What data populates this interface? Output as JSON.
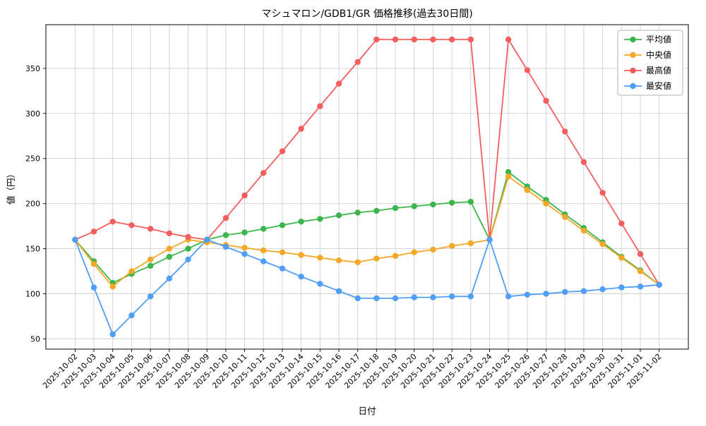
{
  "chart_data": {
    "type": "line",
    "title": "マシュマロン/GDB1/GR 価格推移(過去30日間)",
    "xlabel": "日付",
    "ylabel": "値（円）",
    "grid": true,
    "grid_color": "#d0d0d0",
    "legend_position": "upper-right",
    "ylim": [
      38.6,
      398.4
    ],
    "yticks": [
      50,
      100,
      150,
      200,
      250,
      300,
      350
    ],
    "x_tick_labels": [
      "2025-10-02",
      "2025-10-03",
      "2025-10-04",
      "2025-10-05",
      "2025-10-06",
      "2025-10-07",
      "2025-10-08",
      "2025-10-09",
      "2025-10-10",
      "2025-10-11",
      "2025-10-12",
      "2025-10-13",
      "2025-10-14",
      "2025-10-15",
      "2025-10-16",
      "2025-10-17",
      "2025-10-18",
      "2025-10-19",
      "2025-10-20",
      "2025-10-21",
      "2025-10-22",
      "2025-10-23",
      "2025-10-24",
      "2025-10-25",
      "2025-10-26",
      "2025-10-27",
      "2025-10-28",
      "2025-10-29",
      "2025-10-30",
      "2025-10-31",
      "2025-11-01",
      "2025-11-02"
    ],
    "series": [
      {
        "key": "avg",
        "name": "平均値",
        "color": "#3cb54c",
        "values": [
          160,
          136,
          112,
          122,
          131,
          141,
          150,
          160,
          165,
          168,
          172,
          176,
          180,
          183,
          187,
          190,
          192,
          195,
          197,
          199,
          201,
          202,
          160,
          235,
          219,
          204,
          188,
          173,
          157,
          141,
          126,
          110
        ]
      },
      {
        "key": "median",
        "name": "中央値",
        "color": "#f5a727",
        "values": [
          160,
          133,
          108,
          125,
          138,
          150,
          160,
          157,
          154,
          151,
          148,
          146,
          143,
          140,
          137,
          135,
          139,
          142,
          146,
          149,
          153,
          156,
          160,
          230,
          215,
          200,
          185,
          170,
          155,
          140,
          125,
          110
        ]
      },
      {
        "key": "max",
        "name": "最高値",
        "color": "#f45e5e",
        "values": [
          160,
          169,
          180,
          176,
          172,
          167,
          163,
          160,
          184,
          209,
          234,
          258,
          283,
          308,
          333,
          357,
          382,
          382,
          382,
          382,
          382,
          382,
          160,
          382,
          348,
          314,
          280,
          246,
          212,
          178,
          144,
          110
        ]
      },
      {
        "key": "min",
        "name": "最安値",
        "color": "#4f9ef7",
        "values": [
          160,
          107,
          55,
          76,
          97,
          117,
          138,
          160,
          152,
          144,
          136,
          128,
          119,
          111,
          103,
          95,
          95,
          95,
          96,
          96,
          97,
          97,
          160,
          97,
          99,
          100,
          102,
          103,
          105,
          107,
          108,
          110
        ]
      }
    ]
  }
}
